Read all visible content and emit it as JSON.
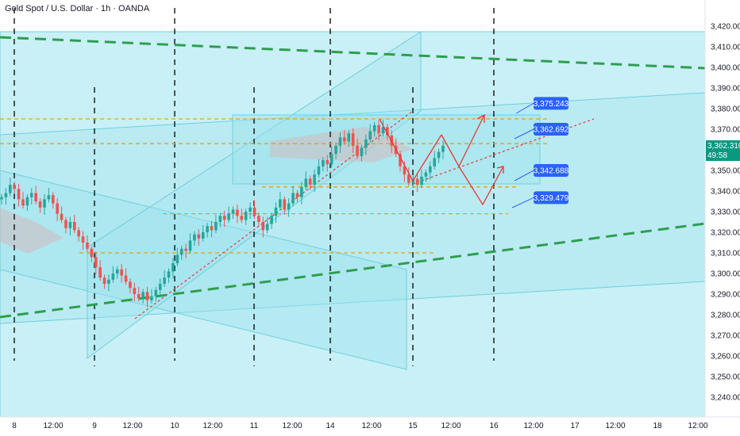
{
  "chart_data": {
    "type": "candlestick",
    "title": "Gold Spot / U.S. Dollar · 1h · OANDA",
    "price_axis": {
      "range": [
        3230,
        3425
      ],
      "ticks": [
        "3,240.000",
        "3,250.000",
        "3,260.000",
        "3,270.000",
        "3,280.000",
        "3,290.000",
        "3,300.000",
        "3,310.000",
        "3,320.000",
        "3,330.000",
        "3,340.000",
        "3,350.000",
        "3,360.000",
        "3,370.000",
        "3,380.000",
        "3,390.000",
        "3,400.000",
        "3,410.000",
        "3,420.000"
      ]
    },
    "time_axis": {
      "ticks": [
        "8",
        "12:00",
        "9",
        "12:00",
        "10",
        "12:00",
        "11",
        "12:00",
        "14",
        "12:00",
        "15",
        "12:00",
        "16",
        "12:00",
        "17",
        "12:00",
        "18",
        "12:00"
      ]
    },
    "current_price": {
      "value": "3,362.310",
      "countdown": "49:58",
      "color": "#089981"
    },
    "annotations": [
      {
        "label": "3,375.243",
        "value": 3375.243
      },
      {
        "label": "3,362.692",
        "value": 3362.692
      },
      {
        "label": "3,342.688",
        "value": 3342.688
      },
      {
        "label": "3,329.479",
        "value": 3329.479
      }
    ],
    "horizontal_levels": [
      3375,
      3363,
      3342,
      3329,
      3310
    ],
    "colors": {
      "up": "#26a69a",
      "down": "#ef5350",
      "level": "#f0a000",
      "trend": "#2e9e4f",
      "zone": "#9de3ee",
      "label": "#2962ff",
      "projection": "#e53935"
    },
    "candles_close": [
      3337,
      3339,
      3343,
      3341,
      3336,
      3333,
      3337,
      3339,
      3335,
      3332,
      3336,
      3338,
      3334,
      3329,
      3326,
      3322,
      3325,
      3321,
      3318,
      3315,
      3312,
      3308,
      3303,
      3298,
      3295,
      3297,
      3300,
      3302,
      3299,
      3296,
      3293,
      3290,
      3288,
      3291,
      3287,
      3289,
      3292,
      3295,
      3298,
      3301,
      3305,
      3309,
      3312,
      3311,
      3316,
      3319,
      3317,
      3320,
      3323,
      3321,
      3325,
      3328,
      3326,
      3329,
      3331,
      3328,
      3326,
      3330,
      3332,
      3328,
      3325,
      3321,
      3324,
      3328,
      3332,
      3336,
      3331,
      3334,
      3339,
      3337,
      3342,
      3346,
      3343,
      3348,
      3352,
      3355,
      3353,
      3358,
      3362,
      3366,
      3364,
      3368,
      3362,
      3357,
      3361,
      3365,
      3369,
      3372,
      3368,
      3371,
      3367,
      3362,
      3358,
      3352,
      3348,
      3344,
      3346,
      3343,
      3347,
      3349,
      3352,
      3356,
      3359,
      3362
    ]
  }
}
